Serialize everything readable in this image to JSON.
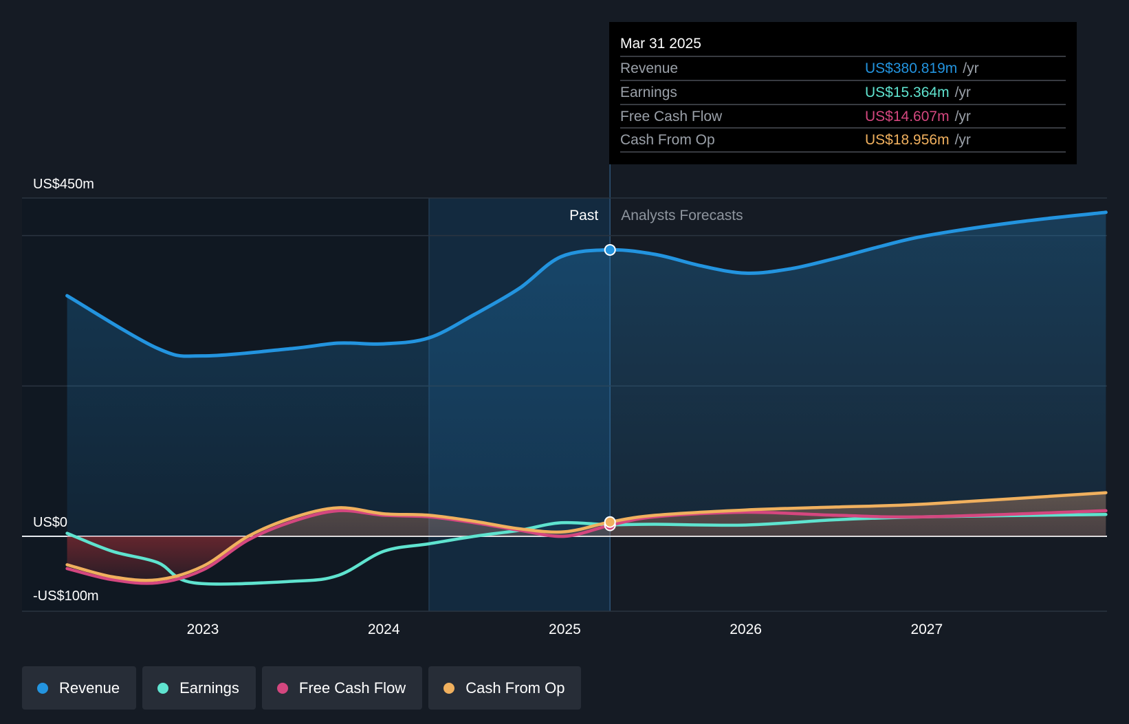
{
  "colors": {
    "background": "#151b24",
    "revenue": "#2394df",
    "earnings": "#5fe3cf",
    "free_cash_flow": "#d4477f",
    "cash_from_op": "#f0b05e",
    "past_shade": "#0f1822",
    "grid": "#2b3440"
  },
  "chart_data": {
    "type": "line",
    "x_axis": {
      "ticks": [
        "2023",
        "2024",
        "2025",
        "2026",
        "2027"
      ],
      "range": [
        2022.25,
        2027.99
      ]
    },
    "y_axis": {
      "range": [
        -100,
        450
      ],
      "ticks": [
        {
          "value": 450,
          "label": "US$450m"
        },
        {
          "value": 0,
          "label": "US$0"
        },
        {
          "value": -100,
          "label": "-US$100m"
        }
      ],
      "gridlines": [
        450,
        400,
        200,
        0,
        -100
      ]
    },
    "past_label": "Past",
    "forecast_label": "Analysts Forecasts",
    "divider_x": 2025.25,
    "past_highlight_start": 2024.25,
    "series": [
      {
        "name": "Revenue",
        "key": "revenue",
        "points": [
          [
            2022.25,
            320
          ],
          [
            2022.75,
            250
          ],
          [
            2023.0,
            240
          ],
          [
            2023.5,
            250
          ],
          [
            2023.75,
            257
          ],
          [
            2024.0,
            256
          ],
          [
            2024.25,
            264
          ],
          [
            2024.5,
            295
          ],
          [
            2024.75,
            330
          ],
          [
            2024.98,
            372
          ],
          [
            2025.25,
            381
          ],
          [
            2025.5,
            375
          ],
          [
            2025.75,
            360
          ],
          [
            2026.0,
            350
          ],
          [
            2026.25,
            356
          ],
          [
            2026.5,
            370
          ],
          [
            2026.75,
            386
          ],
          [
            2027.0,
            400
          ],
          [
            2027.5,
            418
          ],
          [
            2027.99,
            431
          ]
        ]
      },
      {
        "name": "Earnings",
        "key": "earnings",
        "points": [
          [
            2022.25,
            4
          ],
          [
            2022.5,
            -20
          ],
          [
            2022.75,
            -35
          ],
          [
            2022.95,
            -62
          ],
          [
            2023.5,
            -60
          ],
          [
            2023.75,
            -52
          ],
          [
            2024.0,
            -20
          ],
          [
            2024.25,
            -10
          ],
          [
            2024.5,
            0
          ],
          [
            2024.75,
            8
          ],
          [
            2024.98,
            18
          ],
          [
            2025.25,
            15.4
          ],
          [
            2025.5,
            16
          ],
          [
            2026.0,
            15
          ],
          [
            2026.5,
            22
          ],
          [
            2027.0,
            26
          ],
          [
            2027.99,
            29
          ]
        ]
      },
      {
        "name": "Free Cash Flow",
        "key": "free_cash_flow",
        "points": [
          [
            2022.25,
            -43
          ],
          [
            2022.5,
            -58
          ],
          [
            2022.75,
            -62
          ],
          [
            2023.0,
            -45
          ],
          [
            2023.25,
            -5
          ],
          [
            2023.5,
            20
          ],
          [
            2023.75,
            34
          ],
          [
            2024.0,
            28
          ],
          [
            2024.25,
            26
          ],
          [
            2024.5,
            18
          ],
          [
            2024.75,
            8
          ],
          [
            2025.0,
            0
          ],
          [
            2025.25,
            14.6
          ],
          [
            2025.5,
            26
          ],
          [
            2026.0,
            32
          ],
          [
            2026.5,
            28
          ],
          [
            2027.0,
            26
          ],
          [
            2027.99,
            34
          ]
        ]
      },
      {
        "name": "Cash From Op",
        "key": "cash_from_op",
        "points": [
          [
            2022.25,
            -38
          ],
          [
            2022.5,
            -54
          ],
          [
            2022.75,
            -58
          ],
          [
            2023.0,
            -40
          ],
          [
            2023.25,
            0
          ],
          [
            2023.5,
            25
          ],
          [
            2023.75,
            38
          ],
          [
            2024.0,
            30
          ],
          [
            2024.25,
            28
          ],
          [
            2024.5,
            20
          ],
          [
            2024.75,
            10
          ],
          [
            2025.0,
            6
          ],
          [
            2025.25,
            19
          ],
          [
            2025.5,
            28
          ],
          [
            2026.0,
            35
          ],
          [
            2026.5,
            39
          ],
          [
            2027.0,
            43
          ],
          [
            2027.99,
            58
          ]
        ]
      }
    ],
    "tooltip": {
      "date": "Mar 31 2025",
      "unit": "/yr",
      "rows": [
        {
          "label": "Revenue",
          "value": "US$380.819m",
          "key": "revenue"
        },
        {
          "label": "Earnings",
          "value": "US$15.364m",
          "key": "earnings"
        },
        {
          "label": "Free Cash Flow",
          "value": "US$14.607m",
          "key": "free_cash_flow"
        },
        {
          "label": "Cash From Op",
          "value": "US$18.956m",
          "key": "cash_from_op"
        }
      ]
    }
  },
  "legend": [
    {
      "label": "Revenue",
      "key": "revenue"
    },
    {
      "label": "Earnings",
      "key": "earnings"
    },
    {
      "label": "Free Cash Flow",
      "key": "free_cash_flow"
    },
    {
      "label": "Cash From Op",
      "key": "cash_from_op"
    }
  ]
}
